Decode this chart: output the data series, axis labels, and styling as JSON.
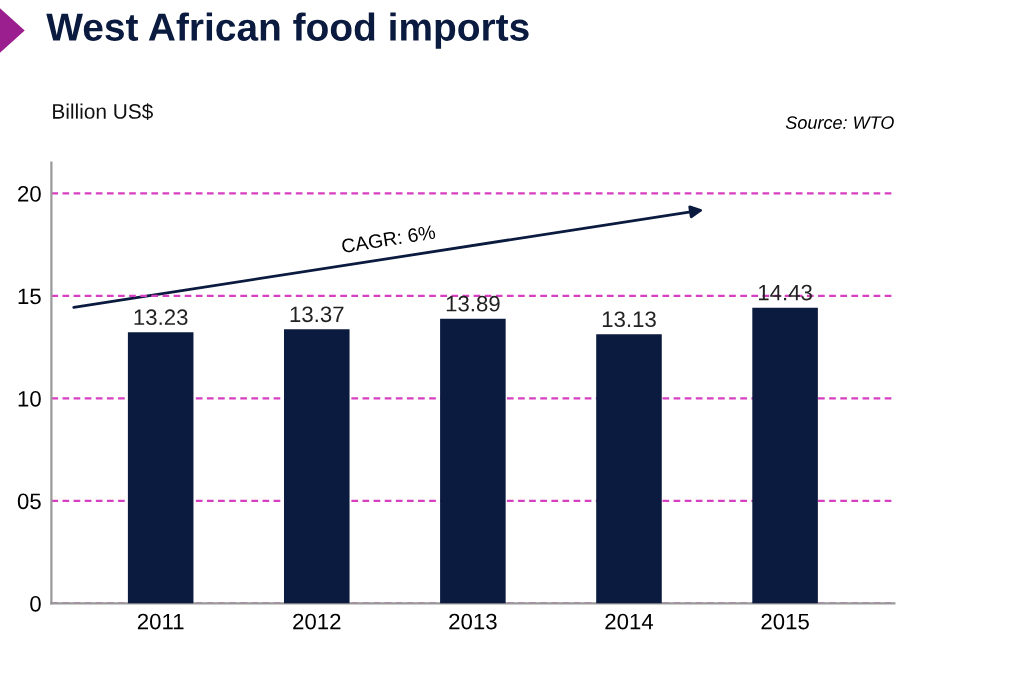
{
  "chart_data": {
    "type": "bar",
    "title": "West African food imports",
    "ylabel": "Billion US$",
    "annotations": [
      "Source: WTO",
      "CAGR: 6%"
    ],
    "categories": [
      "2011",
      "2012",
      "2013",
      "2014",
      "2015"
    ],
    "values": [
      13.23,
      13.37,
      13.89,
      13.13,
      14.43
    ],
    "color": "#0b1a3f",
    "data_labels": true,
    "ylim": [
      0,
      21.5
    ],
    "yticks": [
      0,
      {
        "value": 5,
        "label": "05"
      },
      10,
      15,
      20
    ],
    "grid": "y"
  }
}
